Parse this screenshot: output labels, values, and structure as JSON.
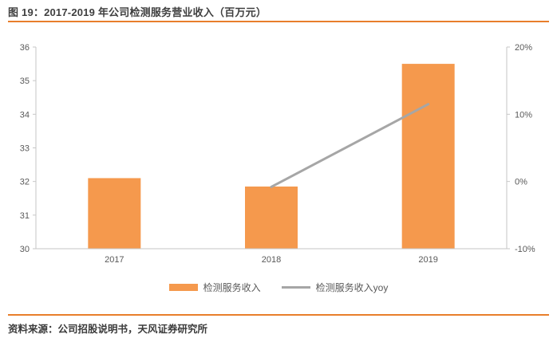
{
  "header": {
    "title": "图 19：2017-2019 年公司检测服务营业收入（百万元）",
    "rule_color": "#e87e2b"
  },
  "footer": {
    "source": "资料来源：公司招股说明书，天风证券研究所"
  },
  "legend": {
    "items": [
      {
        "label": "检测服务收入",
        "swatch": "bar",
        "color": "#f5994d"
      },
      {
        "label": "检测服务收入yoy",
        "swatch": "line",
        "color": "#a6a6a6"
      }
    ]
  },
  "chart_data": {
    "type": "combo-bar-line",
    "title": "图 19：2017-2019 年公司检测服务营业收入（百万元）",
    "categories": [
      "2017",
      "2018",
      "2019"
    ],
    "series": [
      {
        "name": "检测服务收入",
        "type": "bar",
        "axis": "left",
        "color": "#f5994d",
        "values": [
          32.1,
          31.85,
          35.5
        ]
      },
      {
        "name": "检测服务收入yoy",
        "type": "line",
        "axis": "right",
        "color": "#a6a6a6",
        "unit": "%",
        "values": [
          null,
          -0.8,
          11.5
        ]
      }
    ],
    "left_axis": {
      "min": 30,
      "max": 36,
      "ticks": [
        {
          "value": 36,
          "label": "36"
        },
        {
          "value": 35,
          "label": "35"
        },
        {
          "value": 34,
          "label": "34"
        },
        {
          "value": 33,
          "label": "33"
        },
        {
          "value": 32,
          "label": "32"
        },
        {
          "value": 31,
          "label": "31"
        },
        {
          "value": 30,
          "label": "30"
        }
      ]
    },
    "right_axis": {
      "min": -10,
      "max": 20,
      "ticks": [
        {
          "value": 20,
          "label": "20%"
        },
        {
          "value": 10,
          "label": "10%"
        },
        {
          "value": 0,
          "label": "0%"
        },
        {
          "value": -10,
          "label": "-10%"
        }
      ]
    },
    "grid": false,
    "legend_position": "bottom",
    "axis_text_color": "#595959",
    "axis_line_color": "#c6c6c6"
  }
}
